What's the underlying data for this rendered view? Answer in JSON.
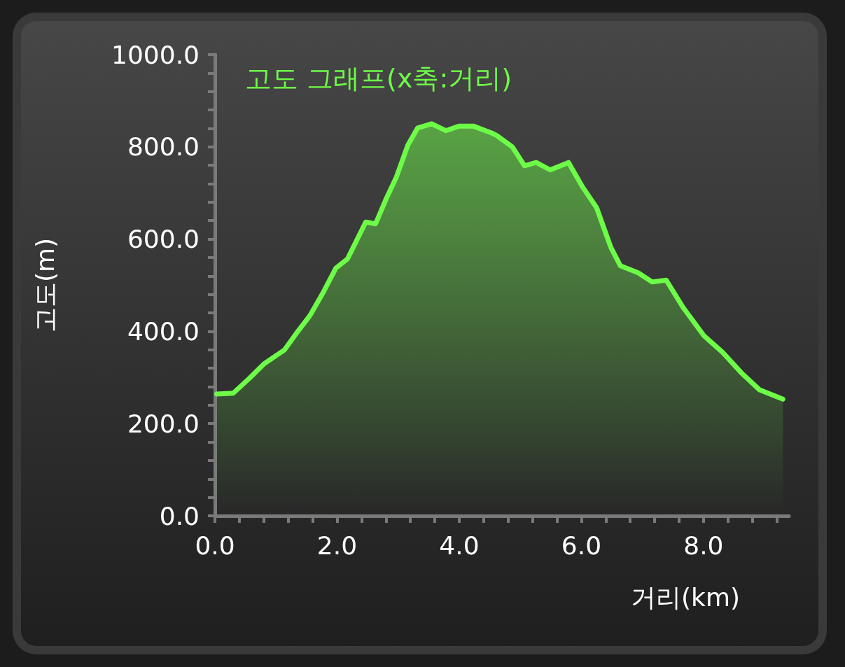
{
  "chart_data": {
    "type": "area",
    "title": "고도 그래프(x축:거리)",
    "xlabel": "거리(km)",
    "ylabel": "고도(m)",
    "color": "#6dfc47",
    "grid": false,
    "marker": "none",
    "xlim": [
      0,
      9.4
    ],
    "ylim": [
      0,
      1000
    ],
    "xticks": [
      {
        "value": 0,
        "label": "0.0"
      },
      {
        "value": 0.4,
        "label": null
      },
      {
        "value": 0.8,
        "label": null
      },
      {
        "value": 1.2,
        "label": null
      },
      {
        "value": 1.6,
        "label": null
      },
      {
        "value": 2,
        "label": "2.0"
      },
      {
        "value": 2.4,
        "label": null
      },
      {
        "value": 2.8,
        "label": null
      },
      {
        "value": 3.2,
        "label": null
      },
      {
        "value": 3.6,
        "label": null
      },
      {
        "value": 4,
        "label": "4.0"
      },
      {
        "value": 4.4,
        "label": null
      },
      {
        "value": 4.8,
        "label": null
      },
      {
        "value": 5.2,
        "label": null
      },
      {
        "value": 5.6,
        "label": null
      },
      {
        "value": 6,
        "label": "6.0"
      },
      {
        "value": 6.4,
        "label": null
      },
      {
        "value": 6.8,
        "label": null
      },
      {
        "value": 7.2,
        "label": null
      },
      {
        "value": 7.6,
        "label": null
      },
      {
        "value": 8,
        "label": "8.0"
      },
      {
        "value": 8.4,
        "label": null
      },
      {
        "value": 8.8,
        "label": null
      },
      {
        "value": 9.2,
        "label": null
      }
    ],
    "yticks": [
      {
        "value": 0,
        "label": "0.0"
      },
      {
        "value": 40,
        "label": null
      },
      {
        "value": 80,
        "label": null
      },
      {
        "value": 120,
        "label": null
      },
      {
        "value": 160,
        "label": null
      },
      {
        "value": 200,
        "label": "200.0"
      },
      {
        "value": 240,
        "label": null
      },
      {
        "value": 280,
        "label": null
      },
      {
        "value": 320,
        "label": null
      },
      {
        "value": 360,
        "label": null
      },
      {
        "value": 400,
        "label": "400.0"
      },
      {
        "value": 440,
        "label": null
      },
      {
        "value": 480,
        "label": null
      },
      {
        "value": 520,
        "label": null
      },
      {
        "value": 560,
        "label": null
      },
      {
        "value": 600,
        "label": "600.0"
      },
      {
        "value": 640,
        "label": null
      },
      {
        "value": 680,
        "label": null
      },
      {
        "value": 720,
        "label": null
      },
      {
        "value": 760,
        "label": null
      },
      {
        "value": 800,
        "label": "800.0"
      },
      {
        "value": 840,
        "label": null
      },
      {
        "value": 880,
        "label": null
      },
      {
        "value": 920,
        "label": null
      },
      {
        "value": 960,
        "label": null
      },
      {
        "value": 1000,
        "label": "1000.0"
      }
    ],
    "x": [
      0.03,
      0.3,
      0.57,
      0.8,
      1.14,
      1.33,
      1.56,
      1.78,
      1.98,
      2.17,
      2.47,
      2.63,
      2.81,
      2.97,
      3.16,
      3.32,
      3.55,
      3.78,
      4.0,
      4.23,
      4.53,
      4.61,
      4.87,
      5.07,
      5.26,
      5.49,
      5.79,
      6.02,
      6.25,
      6.48,
      6.64,
      6.93,
      7.16,
      7.39,
      7.67,
      8.01,
      8.31,
      8.62,
      8.92,
      9.3
    ],
    "values": [
      264,
      266,
      299,
      329,
      360,
      395,
      435,
      486,
      537,
      557,
      637,
      633,
      689,
      734,
      804,
      841,
      850,
      835,
      845,
      845,
      830,
      825,
      800,
      759,
      766,
      750,
      766,
      713,
      668,
      583,
      542,
      527,
      507,
      511,
      451,
      390,
      355,
      310,
      273,
      253
    ]
  }
}
